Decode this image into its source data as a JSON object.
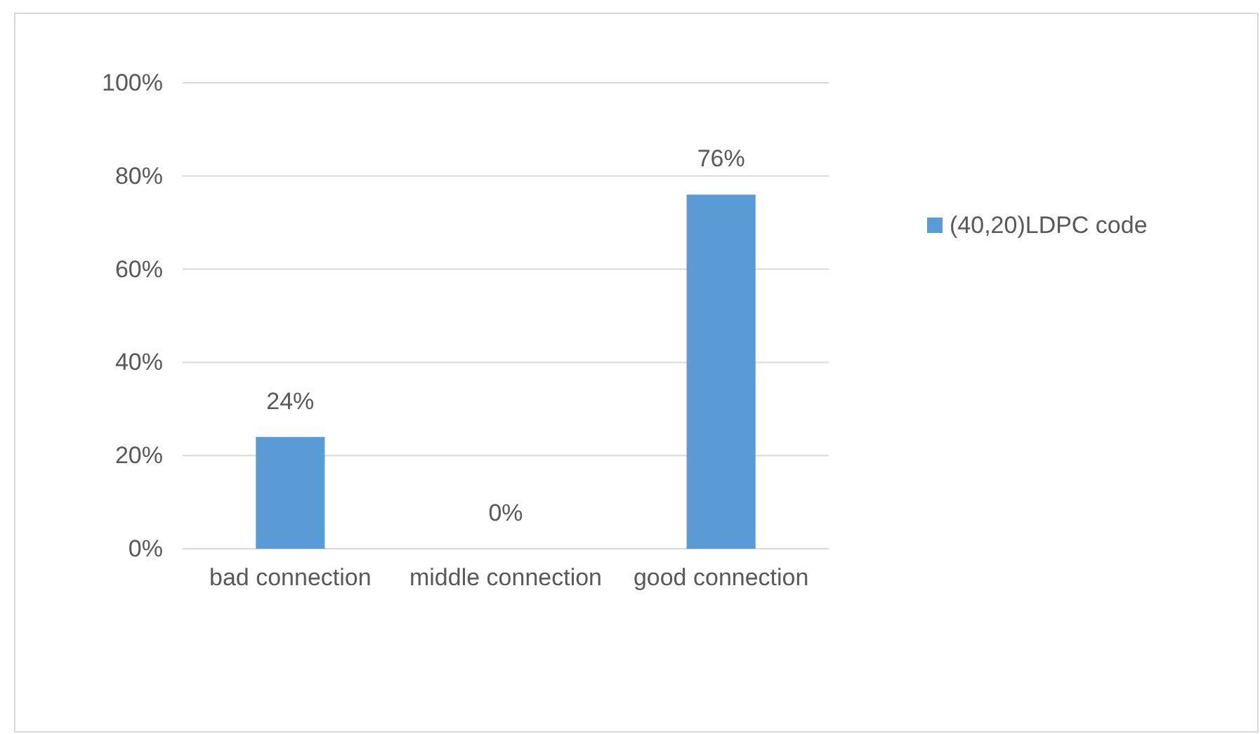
{
  "chart_data": {
    "type": "bar",
    "categories": [
      "bad connection",
      "middle connection",
      "good connection"
    ],
    "series": [
      {
        "name": "(40,20)LDPC code",
        "color": "#5b9bd5",
        "values": [
          24,
          0,
          76
        ],
        "value_labels": [
          "24%",
          "0%",
          "76%"
        ]
      }
    ],
    "ylim": [
      0,
      100
    ],
    "yticks": [
      {
        "value": 0,
        "label": "0%"
      },
      {
        "value": 20,
        "label": "20%"
      },
      {
        "value": 40,
        "label": "40%"
      },
      {
        "value": 60,
        "label": "60%"
      },
      {
        "value": 80,
        "label": "80%"
      },
      {
        "value": 100,
        "label": "100%"
      }
    ],
    "grid": "y",
    "legend": "right"
  }
}
